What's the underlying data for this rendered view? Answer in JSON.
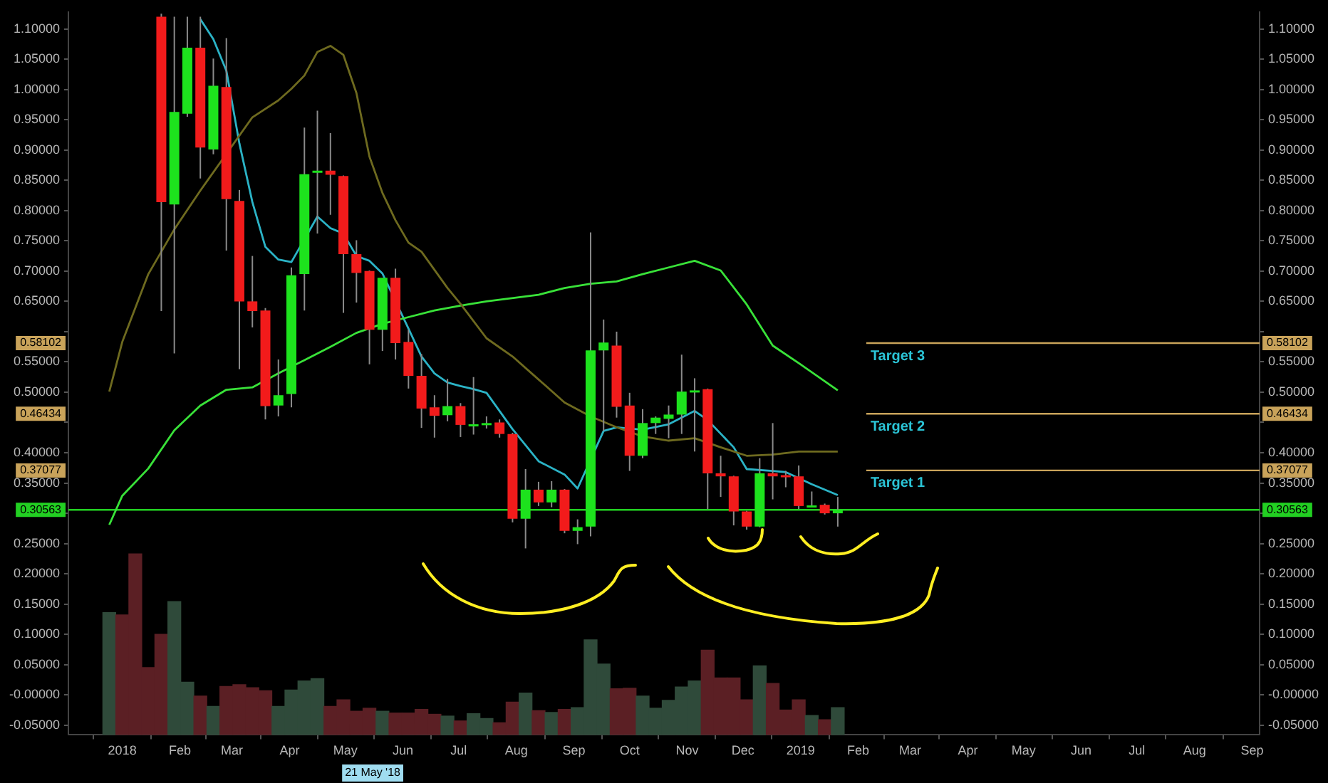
{
  "chart_data": {
    "type": "candlestick",
    "x": [
      "2017-12-25",
      "2018-01-01",
      "2018-01-08",
      "2018-01-15",
      "2018-01-22",
      "2018-01-29",
      "2018-02-05",
      "2018-02-12",
      "2018-02-19",
      "2018-02-26",
      "2018-03-05",
      "2018-03-12",
      "2018-03-19",
      "2018-03-26",
      "2018-04-02",
      "2018-04-09",
      "2018-04-16",
      "2018-04-23",
      "2018-04-30",
      "2018-05-07",
      "2018-05-14",
      "2018-05-21",
      "2018-05-28",
      "2018-06-04",
      "2018-06-11",
      "2018-06-18",
      "2018-06-25",
      "2018-07-02",
      "2018-07-09",
      "2018-07-16",
      "2018-07-23",
      "2018-07-30",
      "2018-08-06",
      "2018-08-13",
      "2018-08-20",
      "2018-08-27",
      "2018-09-03",
      "2018-09-10",
      "2018-09-17",
      "2018-09-24",
      "2018-10-01",
      "2018-10-08",
      "2018-10-15",
      "2018-10-22",
      "2018-10-29",
      "2018-11-05",
      "2018-11-12",
      "2018-11-19",
      "2018-11-26",
      "2018-12-03",
      "2018-12-10",
      "2018-12-17",
      "2018-12-24",
      "2018-12-31",
      "2019-01-07",
      "2019-01-14",
      "2019-01-21"
    ],
    "ohlc": [
      null,
      null,
      null,
      null,
      [
        1.12,
        1.125,
        0.634,
        0.814
      ],
      [
        0.81,
        1.12,
        0.564,
        0.963
      ],
      [
        0.96,
        1.12,
        0.955,
        1.069
      ],
      [
        1.069,
        1.12,
        0.853,
        0.904
      ],
      [
        0.901,
        1.051,
        0.893,
        1.006
      ],
      [
        1.004,
        1.085,
        0.734,
        0.819
      ],
      [
        0.816,
        0.834,
        0.538,
        0.65
      ],
      [
        0.65,
        0.725,
        0.607,
        0.634
      ],
      [
        0.635,
        0.639,
        0.455,
        0.477
      ],
      [
        0.478,
        0.554,
        0.46,
        0.495
      ],
      [
        0.497,
        0.706,
        0.475,
        0.693
      ],
      [
        0.695,
        0.937,
        0.635,
        0.86
      ],
      [
        0.864,
        0.965,
        0.762,
        0.866
      ],
      [
        0.866,
        0.928,
        0.793,
        0.859
      ],
      [
        0.857,
        0.858,
        0.631,
        0.728
      ],
      [
        0.728,
        0.751,
        0.648,
        0.697
      ],
      [
        0.7,
        0.701,
        0.546,
        0.603
      ],
      [
        0.603,
        0.689,
        0.568,
        0.689
      ],
      [
        0.689,
        0.704,
        0.554,
        0.581
      ],
      [
        0.583,
        0.603,
        0.506,
        0.527
      ],
      [
        0.527,
        0.563,
        0.441,
        0.473
      ],
      [
        0.475,
        0.495,
        0.425,
        0.461
      ],
      [
        0.462,
        0.522,
        0.452,
        0.477
      ],
      [
        0.477,
        0.482,
        0.426,
        0.446
      ],
      [
        0.445,
        0.525,
        0.43,
        0.447
      ],
      [
        0.446,
        0.46,
        0.44,
        0.449
      ],
      [
        0.45,
        0.455,
        0.425,
        0.431
      ],
      [
        0.431,
        0.433,
        0.285,
        0.291
      ],
      [
        0.291,
        0.373,
        0.242,
        0.339
      ],
      [
        0.339,
        0.352,
        0.312,
        0.318
      ],
      [
        0.318,
        0.353,
        0.31,
        0.339
      ],
      [
        0.339,
        0.34,
        0.267,
        0.271
      ],
      [
        0.271,
        0.29,
        0.249,
        0.277
      ],
      [
        0.278,
        0.764,
        0.262,
        0.569
      ],
      [
        0.569,
        0.62,
        0.436,
        0.582
      ],
      [
        0.577,
        0.6,
        0.458,
        0.476
      ],
      [
        0.478,
        0.499,
        0.37,
        0.395
      ],
      [
        0.395,
        0.472,
        0.391,
        0.449
      ],
      [
        0.449,
        0.46,
        0.431,
        0.458
      ],
      [
        0.456,
        0.478,
        0.424,
        0.463
      ],
      [
        0.463,
        0.562,
        0.431,
        0.501
      ],
      [
        0.501,
        0.523,
        0.402,
        0.503
      ],
      [
        0.505,
        0.506,
        0.307,
        0.366
      ],
      [
        0.366,
        0.395,
        0.327,
        0.361
      ],
      [
        0.361,
        0.362,
        0.28,
        0.303
      ],
      [
        0.303,
        0.304,
        0.273,
        0.278
      ],
      [
        0.278,
        0.391,
        0.277,
        0.366
      ],
      [
        0.366,
        0.449,
        0.323,
        0.361
      ],
      [
        0.363,
        0.37,
        0.343,
        0.36
      ],
      [
        0.361,
        0.379,
        0.307,
        0.312
      ],
      [
        0.312,
        0.336,
        0.31,
        0.313
      ],
      [
        0.314,
        0.316,
        0.298,
        0.3
      ],
      [
        0.3,
        0.327,
        0.278,
        0.306
      ]
    ],
    "colors": [
      null,
      null,
      null,
      null,
      "#f21b1b",
      "#1de21d",
      "#1de21d",
      "#f21b1b",
      "#1de21d",
      "#f21b1b",
      "#f21b1b",
      "#f21b1b",
      "#f21b1b",
      "#1de21d",
      "#1de21d",
      "#1de21d",
      "#1de21d",
      "#f21b1b",
      "#f21b1b",
      "#f21b1b",
      "#f21b1b",
      "#1de21d",
      "#f21b1b",
      "#f21b1b",
      "#f21b1b",
      "#f21b1b",
      "#1de21d",
      "#f21b1b",
      "#1de21d",
      "#1de21d",
      "#f21b1b",
      "#f21b1b",
      "#1de21d",
      "#f21b1b",
      "#1de21d",
      "#f21b1b",
      "#1de21d",
      "#1de21d",
      "#1de21d",
      "#f21b1b",
      "#f21b1b",
      "#1de21d",
      "#1de21d",
      "#1de21d",
      "#1de21d",
      "#1de21d",
      "#f21b1b",
      "#f21b1b",
      "#f21b1b",
      "#f21b1b",
      "#1de21d",
      "#f21b1b",
      "#f21b1b",
      "#f21b1b",
      "#1de21d",
      "#f21b1b",
      "#1de21d"
    ],
    "series": [
      {
        "type": "bar",
        "colors": [
          "#2f4a3a",
          "#5b1f24",
          "#5b1f24",
          "#5b1f24",
          "#5b1f24",
          "#2f4a3a",
          "#2f4a3a",
          "#5b1f24",
          "#2f4a3a",
          "#5b1f24",
          "#5b1f24",
          "#5b1f24",
          "#5b1f24",
          "#2f4a3a",
          "#2f4a3a",
          "#2f4a3a",
          "#2f4a3a",
          "#5b1f24",
          "#5b1f24",
          "#5b1f24",
          "#5b1f24",
          "#2f4a3a",
          "#5b1f24",
          "#5b1f24",
          "#5b1f24",
          "#5b1f24",
          "#2f4a3a",
          "#5b1f24",
          "#2f4a3a",
          "#2f4a3a",
          "#5b1f24",
          "#5b1f24",
          "#2f4a3a",
          "#5b1f24",
          "#2f4a3a",
          "#5b1f24",
          "#2f4a3a",
          "#2f4a3a",
          "#2f4a3a",
          "#5b1f24",
          "#5b1f24",
          "#2f4a3a",
          "#2f4a3a",
          "#2f4a3a",
          "#2f4a3a",
          "#2f4a3a",
          "#5b1f24",
          "#5b1f24",
          "#5b1f24",
          "#5b1f24",
          "#2f4a3a",
          "#5b1f24",
          "#5b1f24",
          "#5b1f24",
          "#2f4a3a",
          "#5b1f24",
          "#2f4a3a"
        ],
        "base": [
          -0.066,
          -0.066,
          -0.066,
          -0.066,
          -0.066,
          -0.066,
          -0.066,
          -0.066,
          -0.066,
          -0.066,
          -0.066,
          -0.066,
          -0.066,
          -0.066,
          -0.066,
          -0.066,
          -0.066,
          -0.066,
          -0.066,
          -0.066,
          -0.066,
          -0.066,
          -0.066,
          -0.066,
          -0.066,
          -0.066,
          -0.066,
          -0.066,
          -0.066,
          -0.066,
          -0.066,
          -0.066,
          -0.066,
          -0.066,
          -0.066,
          -0.066,
          -0.066,
          -0.066,
          -0.066,
          -0.066,
          -0.066,
          -0.066,
          -0.066,
          -0.066,
          -0.066,
          -0.066,
          -0.066,
          -0.066,
          -0.066,
          -0.066,
          -0.066,
          -0.066,
          -0.066,
          -0.066,
          -0.066,
          -0.066,
          -0.066
        ],
        "values": [
          0.202,
          0.198,
          0.299,
          0.111,
          0.166,
          0.22,
          0.087,
          0.064,
          0.047,
          0.08,
          0.083,
          0.078,
          0.073,
          0.047,
          0.074,
          0.089,
          0.093,
          0.047,
          0.058,
          0.039,
          0.044,
          0.039,
          0.036,
          0.036,
          0.042,
          0.034,
          0.031,
          0.023,
          0.035,
          0.027,
          0.02,
          0.054,
          0.069,
          0.04,
          0.037,
          0.042,
          0.045,
          0.157,
          0.117,
          0.076,
          0.077,
          0.064,
          0.044,
          0.057,
          0.079,
          0.089,
          0.14,
          0.094,
          0.094,
          0.058,
          0.114,
          0.085,
          0.041,
          0.058,
          0.032,
          0.025,
          0.045
        ]
      },
      {
        "type": "line",
        "color": "#6e6a1f",
        "x": [
          "2017-12-25",
          "2018-01-01",
          "2018-01-15",
          "2018-01-29",
          "2018-02-12",
          "2018-03-12",
          "2018-03-26",
          "2018-04-02",
          "2018-04-09",
          "2018-04-16",
          "2018-04-23",
          "2018-04-30",
          "2018-05-07",
          "2018-05-14",
          "2018-05-21",
          "2018-05-28",
          "2018-06-04",
          "2018-06-11",
          "2018-06-18",
          "2018-06-25",
          "2018-07-02",
          "2018-07-16",
          "2018-07-30",
          "2018-08-13",
          "2018-08-27",
          "2018-09-10",
          "2018-09-24",
          "2018-10-08",
          "2018-10-22",
          "2018-11-05",
          "2018-11-19",
          "2018-12-03",
          "2018-12-17",
          "2018-12-31",
          "2019-01-21"
        ],
        "values": [
          0.501,
          0.583,
          0.695,
          0.769,
          0.833,
          0.954,
          0.982,
          1.001,
          1.023,
          1.062,
          1.072,
          1.057,
          0.994,
          0.889,
          0.829,
          0.784,
          0.747,
          0.732,
          0.702,
          0.672,
          0.646,
          0.589,
          0.559,
          0.521,
          0.483,
          0.46,
          0.442,
          0.427,
          0.42,
          0.424,
          0.409,
          0.395,
          0.397,
          0.402,
          0.402
        ]
      },
      {
        "type": "line",
        "color": "#39e239",
        "x": [
          "2017-12-25",
          "2018-01-01",
          "2018-01-15",
          "2018-01-29",
          "2018-02-12",
          "2018-02-26",
          "2018-03-12",
          "2018-03-26",
          "2018-04-09",
          "2018-04-23",
          "2018-05-07",
          "2018-05-21",
          "2018-06-04",
          "2018-06-18",
          "2018-07-02",
          "2018-07-16",
          "2018-08-13",
          "2018-08-27",
          "2018-09-10",
          "2018-09-24",
          "2018-10-08",
          "2018-10-22",
          "2018-11-05",
          "2018-11-19",
          "2018-12-03",
          "2018-12-17",
          "2018-12-31",
          "2019-01-21"
        ],
        "values": [
          0.281,
          0.329,
          0.374,
          0.437,
          0.478,
          0.504,
          0.508,
          0.531,
          0.553,
          0.575,
          0.598,
          0.613,
          0.624,
          0.635,
          0.643,
          0.65,
          0.661,
          0.672,
          0.679,
          0.683,
          0.695,
          0.706,
          0.717,
          0.701,
          0.645,
          0.577,
          0.548,
          0.503
        ]
      },
      {
        "type": "line",
        "color": "#2bb3c6",
        "x": [
          "2018-02-12",
          "2018-02-19",
          "2018-02-26",
          "2018-03-05",
          "2018-03-12",
          "2018-03-19",
          "2018-03-26",
          "2018-04-02",
          "2018-04-16",
          "2018-04-23",
          "2018-04-30",
          "2018-05-07",
          "2018-05-14",
          "2018-05-21",
          "2018-06-04",
          "2018-06-11",
          "2018-06-18",
          "2018-06-25",
          "2018-07-02",
          "2018-07-09",
          "2018-07-16",
          "2018-07-30",
          "2018-08-13",
          "2018-08-27",
          "2018-09-03",
          "2018-09-17",
          "2018-09-24",
          "2018-10-08",
          "2018-10-22",
          "2018-11-05",
          "2018-11-12",
          "2018-11-26",
          "2018-12-03",
          "2018-12-17",
          "2018-12-24",
          "2019-01-07",
          "2019-01-21"
        ],
        "values": [
          1.116,
          1.083,
          1.031,
          0.911,
          0.814,
          0.74,
          0.719,
          0.715,
          0.79,
          0.771,
          0.762,
          0.725,
          0.717,
          0.696,
          0.605,
          0.559,
          0.531,
          0.516,
          0.51,
          0.505,
          0.499,
          0.439,
          0.386,
          0.364,
          0.341,
          0.436,
          0.442,
          0.438,
          0.447,
          0.469,
          0.454,
          0.409,
          0.373,
          0.37,
          0.368,
          0.348,
          0.33
        ]
      }
    ],
    "xlim": [
      "2017-12-03",
      "2019-09-05"
    ],
    "xticks": [
      {
        "value": "2018",
        "label": "2018"
      },
      {
        "value": "2018-02",
        "label": "Feb"
      },
      {
        "value": "2018-03",
        "label": "Mar"
      },
      {
        "value": "2018-04",
        "label": "Apr"
      },
      {
        "value": "2018-05",
        "label": "May"
      },
      {
        "value": "2018-06",
        "label": "Jun"
      },
      {
        "value": "2018-07",
        "label": "Jul"
      },
      {
        "value": "2018-08",
        "label": "Aug"
      },
      {
        "value": "2018-09",
        "label": "Sep"
      },
      {
        "value": "2018-10",
        "label": "Oct"
      },
      {
        "value": "2018-11",
        "label": "Nov"
      },
      {
        "value": "2018-12",
        "label": "Dec"
      },
      {
        "value": "2019",
        "label": "2019"
      },
      {
        "value": "2019-02",
        "label": "Feb"
      },
      {
        "value": "2019-03",
        "label": "Mar"
      },
      {
        "value": "2019-04",
        "label": "Apr"
      },
      {
        "value": "2019-05",
        "label": "May"
      },
      {
        "value": "2019-06",
        "label": "Jun"
      },
      {
        "value": "2019-07",
        "label": "Jul"
      },
      {
        "value": "2019-08",
        "label": "Aug"
      },
      {
        "value": "2019-09",
        "label": "Sep"
      }
    ],
    "ylim": [
      -0.066,
      1.128
    ],
    "yticks": [
      {
        "value": -0.05,
        "label": "-0.05000"
      },
      {
        "value": 0,
        "label": "-0.00000"
      },
      {
        "value": 0.05,
        "label": "0.05000"
      },
      {
        "value": 0.1,
        "label": "0.10000"
      },
      {
        "value": 0.15,
        "label": "0.15000"
      },
      {
        "value": 0.2,
        "label": "0.20000"
      },
      {
        "value": 0.25,
        "label": "0.25000"
      },
      {
        "value": 0.3,
        "label": null
      },
      {
        "value": 0.35,
        "label": "0.35000"
      },
      {
        "value": 0.4,
        "label": "0.40000"
      },
      {
        "value": 0.45,
        "label": null
      },
      {
        "value": 0.5,
        "label": "0.50000"
      },
      {
        "value": 0.55,
        "label": "0.55000"
      },
      {
        "value": 0.6,
        "label": null
      },
      {
        "value": 0.65,
        "label": "0.65000"
      },
      {
        "value": 0.7,
        "label": "0.70000"
      },
      {
        "value": 0.75,
        "label": "0.75000"
      },
      {
        "value": 0.8,
        "label": "0.80000"
      },
      {
        "value": 0.85,
        "label": "0.85000"
      },
      {
        "value": 0.9,
        "label": "0.90000"
      },
      {
        "value": 0.95,
        "label": "0.95000"
      },
      {
        "value": 1,
        "label": "1.00000"
      },
      {
        "value": 1.05,
        "label": "1.05000"
      },
      {
        "value": 1.1,
        "label": "1.10000"
      }
    ],
    "y2lim": [
      -0.066,
      1.128
    ],
    "y2ticks": [
      {
        "value": -0.05,
        "label": "-0.05000"
      },
      {
        "value": 0,
        "label": "-0.00000"
      },
      {
        "value": 0.05,
        "label": "0.05000"
      },
      {
        "value": 0.1,
        "label": "0.10000"
      },
      {
        "value": 0.15,
        "label": "0.15000"
      },
      {
        "value": 0.2,
        "label": "0.20000"
      },
      {
        "value": 0.25,
        "label": "0.25000"
      },
      {
        "value": 0.3,
        "label": null
      },
      {
        "value": 0.35,
        "label": "0.35000"
      },
      {
        "value": 0.4,
        "label": "0.40000"
      },
      {
        "value": 0.45,
        "label": null
      },
      {
        "value": 0.5,
        "label": "0.50000"
      },
      {
        "value": 0.55,
        "label": "0.55000"
      },
      {
        "value": 0.6,
        "label": null
      },
      {
        "value": 0.65,
        "label": "0.65000"
      },
      {
        "value": 0.7,
        "label": "0.70000"
      },
      {
        "value": 0.75,
        "label": "0.75000"
      },
      {
        "value": 0.8,
        "label": "0.80000"
      },
      {
        "value": 0.85,
        "label": "0.85000"
      },
      {
        "value": 0.9,
        "label": "0.90000"
      },
      {
        "value": 0.95,
        "label": "0.95000"
      },
      {
        "value": 1,
        "label": "1.00000"
      },
      {
        "value": 1.05,
        "label": "1.05000"
      },
      {
        "value": 1.1,
        "label": "1.10000"
      }
    ],
    "ref_lines": [
      {
        "axis": "y",
        "value": 0.58102,
        "label": "Target 3",
        "color": "#c9a35a"
      },
      {
        "axis": "y",
        "value": 0.46434,
        "label": "Target 2",
        "color": "#c9a35a"
      },
      {
        "axis": "y",
        "value": 0.37077,
        "label": "Target 1",
        "color": "#c9a35a"
      },
      {
        "axis": "y",
        "value": 0.30563,
        "color": "#22d022"
      }
    ],
    "annotations": [
      "0.58102",
      "0.46434",
      "0.37077",
      "0.30563",
      "21 May '18"
    ]
  }
}
